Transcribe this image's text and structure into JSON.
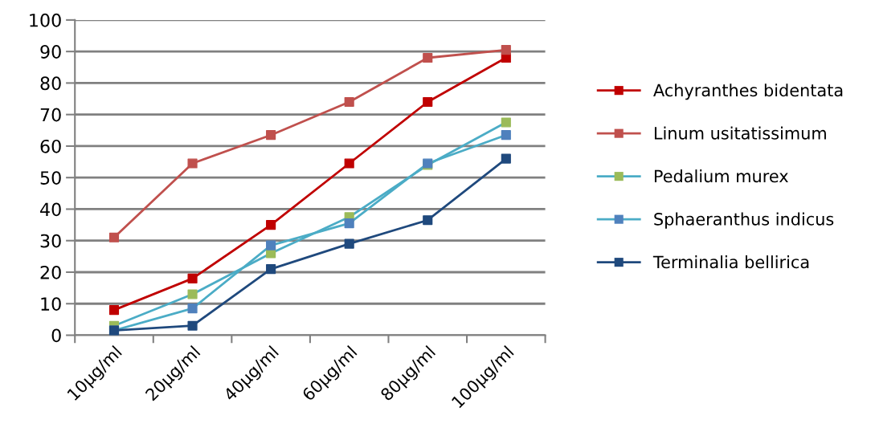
{
  "chart_data": {
    "type": "line",
    "categories": [
      "10µg/ml",
      "20µg/ml",
      "40µg/ml",
      "60µg/ml",
      "80µg/ml",
      "100µg/ml"
    ],
    "series": [
      {
        "name": "Achyranthes bidentata",
        "color": "#c00000",
        "colors": [
          "#c00000",
          "#c00000",
          "#c00000",
          "#c00000",
          "#c00000",
          "#c00000"
        ],
        "values": [
          8,
          18,
          35,
          54.5,
          74,
          88
        ]
      },
      {
        "name": "Linum usitatissimum",
        "color": "#c0504d",
        "colors": [
          "#c0504d",
          "#c0504d",
          "#c0504d",
          "#c0504d",
          "#c0504d",
          "#c0504d"
        ],
        "values": [
          31,
          54.5,
          63.5,
          74,
          88,
          90.5
        ]
      },
      {
        "name": "Pedalium murex",
        "color": "#4bacc6",
        "colors": [
          "#9bbb59",
          "#9bbb59",
          "#9bbb59",
          "#9bbb59",
          "#9bbb59",
          "#9bbb59"
        ],
        "values": [
          3,
          13,
          26,
          37.5,
          54,
          67.5
        ]
      },
      {
        "name": "Sphaeranthus indicus",
        "color": "#4bacc6",
        "colors": [
          "#4f81bd",
          "#4f81bd",
          "#4f81bd",
          "#4f81bd",
          "#4f81bd",
          "#4f81bd"
        ],
        "values": [
          1.5,
          8.5,
          28.5,
          35.5,
          54.5,
          63.5
        ]
      },
      {
        "name": "Terminalia bellirica",
        "color": "#1f497d",
        "colors": [
          "#1f497d",
          "#1f497d",
          "#1f497d",
          "#1f497d",
          "#1f497d",
          "#1f497d"
        ],
        "values": [
          1.5,
          3,
          21,
          29,
          36.5,
          56
        ]
      }
    ],
    "ylim": [
      0,
      100
    ],
    "yticks": [
      0,
      10,
      20,
      30,
      40,
      50,
      60,
      70,
      80,
      90,
      100
    ],
    "grid": "y",
    "legend": "right",
    "marker": "square",
    "line_style": "solid"
  }
}
